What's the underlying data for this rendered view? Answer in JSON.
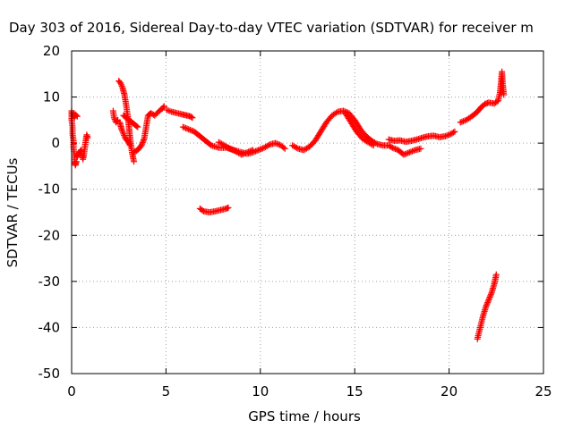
{
  "chart_data": {
    "type": "scatter",
    "title": "Day 303 of 2016, Sidereal Day-to-day VTEC variation (SDTVAR) for receiver m",
    "xlabel": "GPS time / hours",
    "ylabel": "SDTVAR / TECUs",
    "xlim": [
      0,
      25
    ],
    "ylim": [
      -50,
      20
    ],
    "x_ticks": [
      0,
      5,
      10,
      15,
      20,
      25
    ],
    "y_ticks": [
      -50,
      -40,
      -30,
      -20,
      -10,
      0,
      10,
      20
    ],
    "x_tick_labels": [
      "0",
      "5",
      "10",
      "15",
      "20",
      "25"
    ],
    "y_tick_labels": [
      "-50",
      "-40",
      "-30",
      "-20",
      "-10",
      "0",
      "10",
      "20"
    ],
    "grid": true,
    "legend": "none",
    "marker": "+",
    "color": "#ff0000",
    "segments": [
      [
        [
          0.0,
          7.0
        ],
        [
          0.0,
          5.0
        ],
        [
          0.05,
          3.5
        ],
        [
          0.05,
          2.0
        ],
        [
          0.1,
          0.5
        ],
        [
          0.1,
          -1.0
        ],
        [
          0.15,
          -2.5
        ],
        [
          0.15,
          -4.0
        ],
        [
          0.2,
          -4.8
        ],
        [
          0.25,
          -4.0
        ]
      ],
      [
        [
          0.1,
          6.5
        ],
        [
          0.15,
          5.5
        ],
        [
          0.2,
          6.2
        ],
        [
          0.3,
          5.8
        ]
      ],
      [
        [
          0.3,
          -3.0
        ],
        [
          0.4,
          -2.0
        ],
        [
          0.5,
          -1.5
        ],
        [
          0.6,
          -3.5
        ],
        [
          0.65,
          -2.5
        ],
        [
          0.7,
          -1.0
        ],
        [
          0.75,
          0.5
        ],
        [
          0.8,
          1.8
        ],
        [
          0.85,
          1.2
        ]
      ],
      [
        [
          2.2,
          7.0
        ],
        [
          2.25,
          5.5
        ],
        [
          2.35,
          4.5
        ],
        [
          2.45,
          5.0
        ]
      ],
      [
        [
          2.5,
          13.5
        ],
        [
          2.6,
          13.0
        ],
        [
          2.7,
          12.0
        ],
        [
          2.8,
          10.5
        ],
        [
          2.9,
          8.0
        ],
        [
          3.0,
          5.0
        ],
        [
          3.05,
          3.0
        ],
        [
          3.1,
          1.0
        ],
        [
          3.15,
          -0.5
        ],
        [
          3.2,
          -2.0
        ],
        [
          3.25,
          -3.0
        ],
        [
          3.3,
          -4.0
        ]
      ],
      [
        [
          2.55,
          4.5
        ],
        [
          2.65,
          3.0
        ],
        [
          2.75,
          2.0
        ],
        [
          2.85,
          1.0
        ],
        [
          3.0,
          0.3
        ],
        [
          3.1,
          -0.5
        ]
      ],
      [
        [
          2.75,
          6.0
        ],
        [
          2.9,
          5.5
        ],
        [
          3.05,
          5.0
        ],
        [
          3.2,
          4.5
        ],
        [
          3.35,
          4.0
        ],
        [
          3.5,
          3.5
        ]
      ],
      [
        [
          3.3,
          -2.0
        ],
        [
          3.5,
          -1.5
        ],
        [
          3.7,
          -0.5
        ],
        [
          3.85,
          1.0
        ],
        [
          3.95,
          3.5
        ],
        [
          4.05,
          6.0
        ],
        [
          4.2,
          6.5
        ],
        [
          4.4,
          6.0
        ],
        [
          4.6,
          6.8
        ],
        [
          4.8,
          7.5
        ],
        [
          4.9,
          8.0
        ]
      ],
      [
        [
          5.05,
          7.2
        ],
        [
          5.3,
          6.8
        ],
        [
          5.6,
          6.5
        ],
        [
          5.9,
          6.2
        ],
        [
          6.1,
          6.0
        ],
        [
          6.3,
          5.8
        ],
        [
          6.4,
          5.5
        ]
      ],
      [
        [
          5.9,
          3.5
        ],
        [
          6.2,
          3.0
        ],
        [
          6.5,
          2.5
        ],
        [
          6.8,
          1.5
        ],
        [
          7.1,
          0.5
        ],
        [
          7.4,
          -0.5
        ],
        [
          7.8,
          -1.0
        ],
        [
          8.2,
          -1.0
        ],
        [
          8.6,
          -1.5
        ],
        [
          9.0,
          -2.0
        ],
        [
          9.3,
          -2.3
        ],
        [
          9.6,
          -2.0
        ],
        [
          9.9,
          -1.5
        ],
        [
          10.2,
          -1.0
        ],
        [
          10.5,
          -0.3
        ],
        [
          10.8,
          0.0
        ],
        [
          11.1,
          -0.5
        ],
        [
          11.3,
          -1.2
        ]
      ],
      [
        [
          7.8,
          0.2
        ],
        [
          8.1,
          -0.5
        ],
        [
          8.4,
          -1.2
        ],
        [
          8.7,
          -1.8
        ],
        [
          9.0,
          -2.5
        ],
        [
          9.3,
          -2.0
        ],
        [
          9.6,
          -1.5
        ]
      ],
      [
        [
          6.8,
          -14.2
        ],
        [
          7.0,
          -14.8
        ],
        [
          7.3,
          -15.0
        ],
        [
          7.6,
          -14.8
        ],
        [
          7.9,
          -14.5
        ],
        [
          8.2,
          -14.2
        ],
        [
          8.3,
          -14.0
        ]
      ],
      [
        [
          11.7,
          -0.5
        ],
        [
          12.0,
          -1.2
        ],
        [
          12.3,
          -1.5
        ],
        [
          12.6,
          -0.8
        ],
        [
          12.9,
          0.5
        ],
        [
          13.2,
          2.5
        ],
        [
          13.5,
          4.5
        ],
        [
          13.8,
          6.0
        ],
        [
          14.1,
          6.8
        ],
        [
          14.4,
          7.0
        ],
        [
          14.7,
          6.5
        ],
        [
          15.0,
          5.0
        ],
        [
          15.3,
          3.0
        ],
        [
          15.6,
          1.5
        ],
        [
          15.9,
          0.5
        ],
        [
          16.2,
          -0.2
        ],
        [
          16.5,
          -0.5
        ],
        [
          16.8,
          -0.5
        ],
        [
          17.0,
          -1.0
        ],
        [
          17.3,
          -1.5
        ],
        [
          17.6,
          -2.5
        ],
        [
          17.9,
          -2.0
        ],
        [
          18.2,
          -1.5
        ],
        [
          18.5,
          -1.2
        ]
      ],
      [
        [
          14.5,
          6.5
        ],
        [
          14.8,
          4.5
        ],
        [
          15.1,
          2.5
        ],
        [
          15.4,
          1.0
        ],
        [
          15.7,
          0.2
        ],
        [
          16.0,
          -0.5
        ]
      ],
      [
        [
          16.8,
          0.8
        ],
        [
          17.1,
          0.5
        ],
        [
          17.4,
          0.6
        ],
        [
          17.7,
          0.3
        ],
        [
          18.0,
          0.5
        ],
        [
          18.3,
          0.8
        ],
        [
          18.6,
          1.2
        ],
        [
          18.9,
          1.5
        ],
        [
          19.2,
          1.6
        ],
        [
          19.5,
          1.3
        ],
        [
          19.8,
          1.5
        ],
        [
          20.1,
          2.0
        ],
        [
          20.3,
          2.5
        ]
      ],
      [
        [
          20.6,
          4.5
        ],
        [
          20.9,
          5.0
        ],
        [
          21.2,
          5.8
        ],
        [
          21.5,
          6.8
        ],
        [
          21.7,
          7.8
        ],
        [
          21.9,
          8.5
        ],
        [
          22.1,
          8.8
        ],
        [
          22.4,
          8.6
        ],
        [
          22.6,
          9.2
        ],
        [
          22.7,
          11.0
        ],
        [
          22.75,
          13.0
        ],
        [
          22.8,
          15.5
        ],
        [
          22.85,
          12.5
        ],
        [
          22.9,
          10.5
        ]
      ],
      [
        [
          21.5,
          -42.5
        ],
        [
          21.65,
          -40.0
        ],
        [
          21.8,
          -37.5
        ],
        [
          21.95,
          -35.5
        ],
        [
          22.1,
          -34.0
        ],
        [
          22.25,
          -32.5
        ],
        [
          22.4,
          -30.5
        ],
        [
          22.5,
          -28.5
        ]
      ]
    ]
  }
}
